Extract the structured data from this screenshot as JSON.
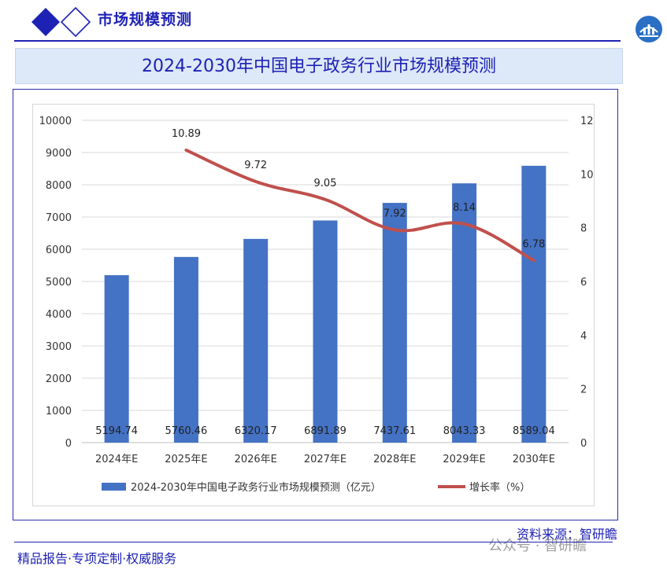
{
  "header": {
    "title": "市场规模预测"
  },
  "banner": {
    "title": "2024-2030年中国电子政务行业市场规模预测"
  },
  "footer": {
    "slogan": "精品报告·专项定制·权威服务",
    "source": "资料来源：智研瞻",
    "watermark": "公众号 · 智研瞻"
  },
  "colors": {
    "bar": "#4472c4",
    "line": "#c0504d",
    "brand": "#1e22b4"
  },
  "chart_data": {
    "type": "bar",
    "categories": [
      "2024年E",
      "2025年E",
      "2026年E",
      "2027年E",
      "2028年E",
      "2029年E",
      "2030年E"
    ],
    "series": [
      {
        "name": "2024-2030年中国电子政务行业市场规模预测（亿元）",
        "type": "bar",
        "axis": "left",
        "values": [
          5194.74,
          5760.46,
          6320.17,
          6891.89,
          7437.61,
          8043.33,
          8589.04
        ],
        "labels": [
          "5194.74",
          "5760.46",
          "6320.17",
          "6891.89",
          "7437.61",
          "8043.33",
          "8589.04"
        ]
      },
      {
        "name": "增长率（%）",
        "type": "line",
        "axis": "right",
        "values": [
          null,
          10.89,
          9.72,
          9.05,
          7.92,
          8.14,
          6.78
        ],
        "labels": [
          "",
          "10.89",
          "9.72",
          "9.05",
          "7.92",
          "8.14",
          "6.78"
        ]
      }
    ],
    "y_left": {
      "min": 0,
      "max": 10000,
      "ticks": [
        "0",
        "1000",
        "2000",
        "3000",
        "4000",
        "5000",
        "6000",
        "7000",
        "8000",
        "9000",
        "10000"
      ]
    },
    "y_right": {
      "min": 0,
      "max": 12,
      "ticks": [
        "0",
        "2",
        "4",
        "6",
        "8",
        "10",
        "12"
      ]
    },
    "grid": true,
    "legend": "bottom"
  }
}
